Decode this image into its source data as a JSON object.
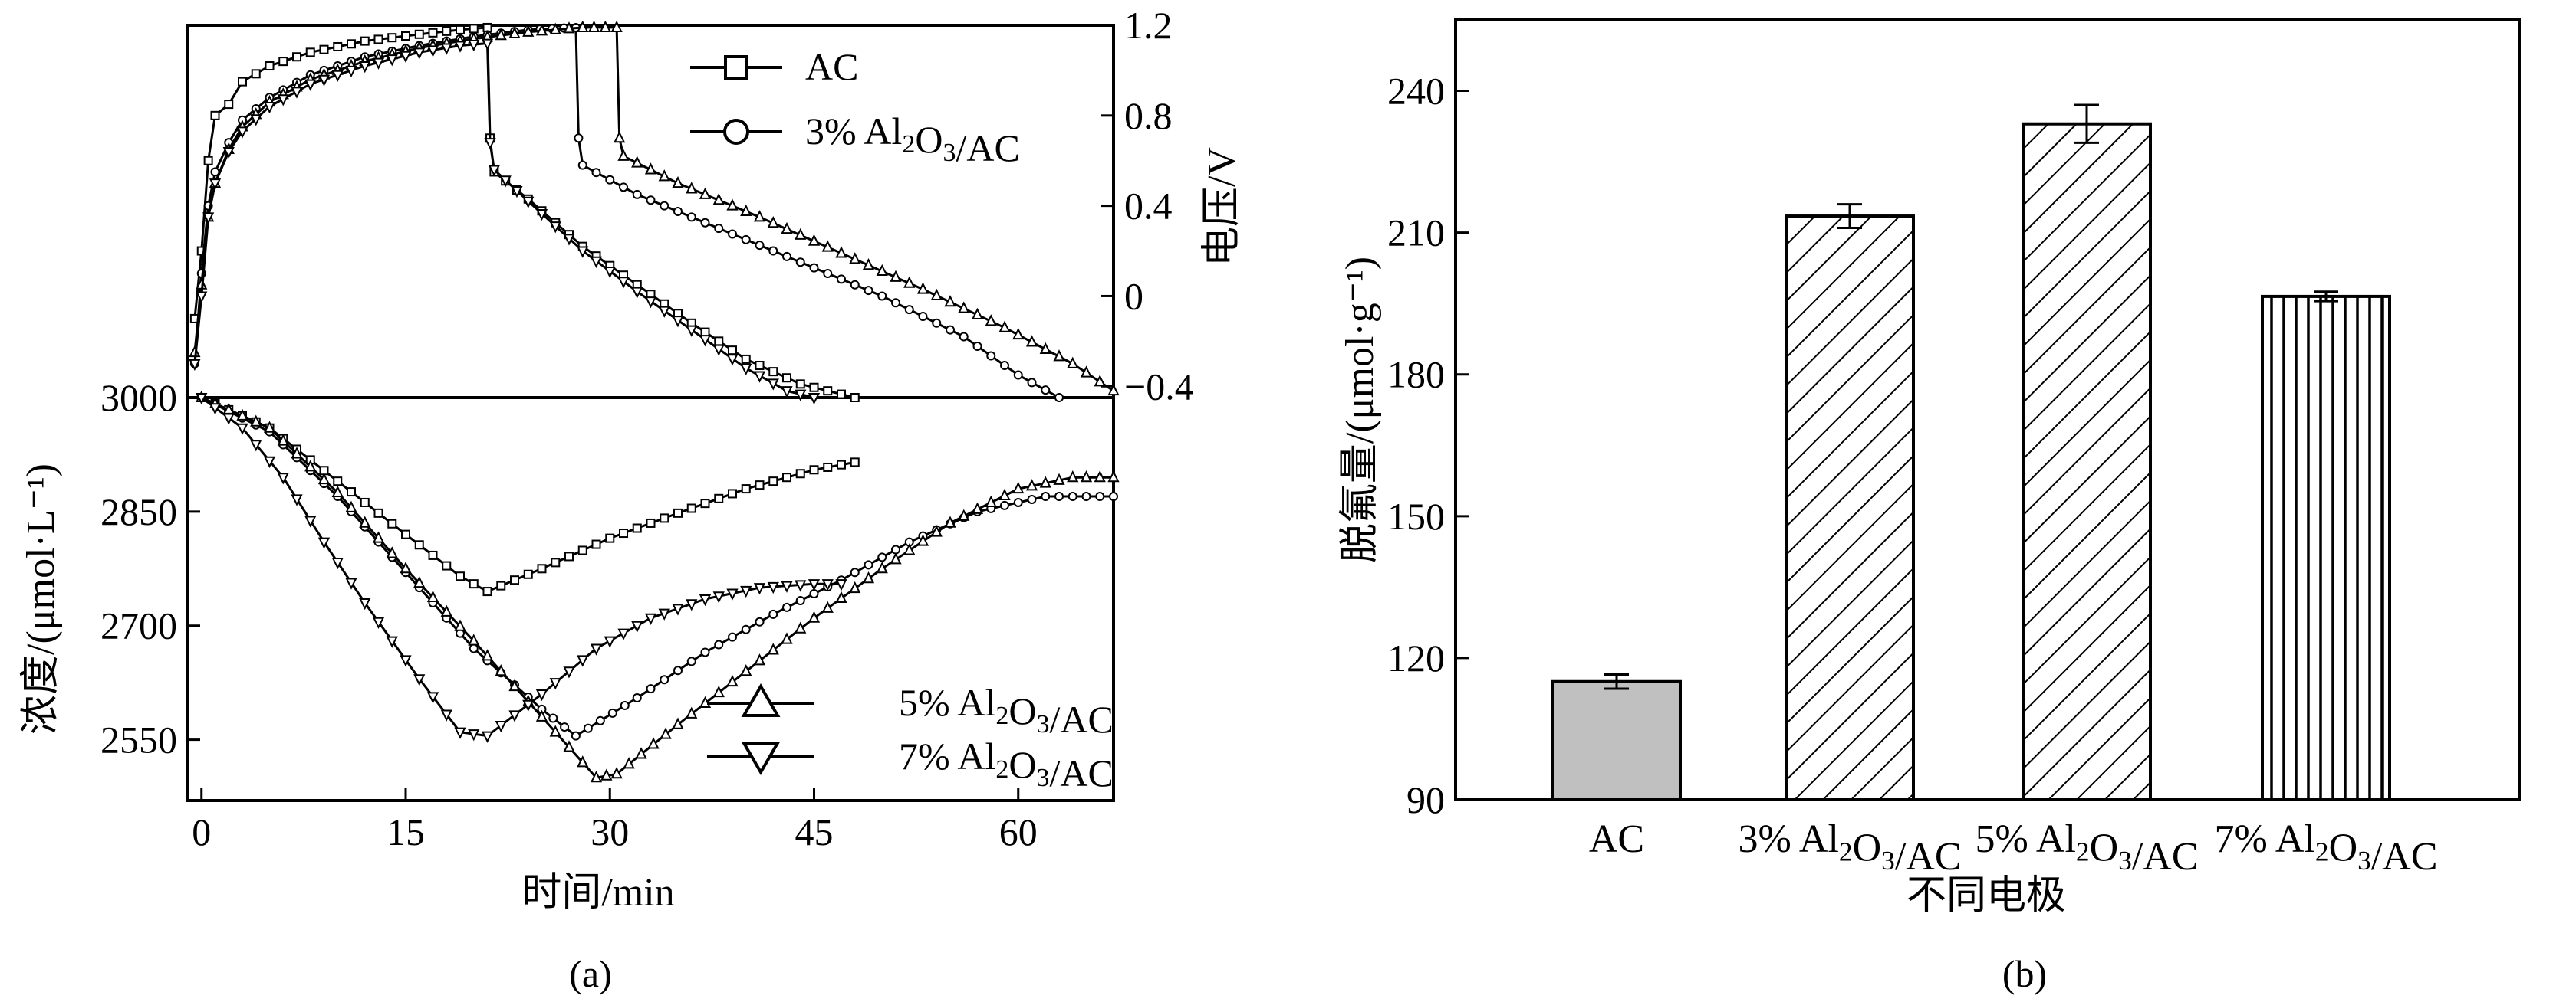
{
  "panel_a": {
    "label": "(a)",
    "xlabel": "时间/min",
    "ylabel_left": "浓度/(μmol·L⁻¹)",
    "ylabel_right": "电压/V",
    "legend_top": [
      "AC",
      "3% Al₂O₃/AC"
    ],
    "legend_bottom": [
      "5% Al₂O₃/AC",
      "7% Al₂O₃/AC"
    ]
  },
  "panel_b": {
    "label": "(b)",
    "xlabel": "不同电极",
    "ylabel": "脱氟量/(μmol·g⁻¹)"
  },
  "colors": {
    "line": "#000000",
    "ac_bar": "#c0c0c0",
    "background": "#ffffff"
  },
  "chart_data": [
    {
      "type": "line",
      "subplot": "voltage",
      "ylabel": "电压/V",
      "ylim": [
        -0.45,
        1.2
      ],
      "yticks": [
        -0.4,
        0,
        0.4,
        0.8,
        1.2
      ],
      "xlim": [
        -1,
        67
      ],
      "series": [
        {
          "name": "AC",
          "marker": "square",
          "points": [
            [
              -0.5,
              -0.1
            ],
            [
              0,
              0.2
            ],
            [
              0.5,
              0.6
            ],
            [
              1,
              0.8
            ],
            [
              2,
              0.85
            ],
            [
              3,
              0.95
            ],
            [
              5,
              1.02
            ],
            [
              8,
              1.08
            ],
            [
              12,
              1.13
            ],
            [
              16,
              1.16
            ],
            [
              19,
              1.18
            ],
            [
              21,
              1.19
            ],
            [
              21.2,
              0.7
            ],
            [
              21.5,
              0.55
            ],
            [
              24,
              0.43
            ],
            [
              28,
              0.22
            ],
            [
              32,
              0.05
            ],
            [
              36,
              -0.12
            ],
            [
              40,
              -0.28
            ],
            [
              44,
              -0.39
            ],
            [
              48,
              -0.45
            ]
          ]
        },
        {
          "name": "3% Al₂O₃/AC",
          "marker": "circle",
          "points": [
            [
              -0.5,
              -0.3
            ],
            [
              0,
              0.1
            ],
            [
              0.5,
              0.4
            ],
            [
              1,
              0.55
            ],
            [
              2,
              0.68
            ],
            [
              3,
              0.78
            ],
            [
              5,
              0.88
            ],
            [
              8,
              0.98
            ],
            [
              12,
              1.06
            ],
            [
              16,
              1.11
            ],
            [
              20,
              1.15
            ],
            [
              24,
              1.18
            ],
            [
              27.5,
              1.19
            ],
            [
              27.7,
              0.7
            ],
            [
              28,
              0.58
            ],
            [
              32,
              0.45
            ],
            [
              38,
              0.3
            ],
            [
              44,
              0.15
            ],
            [
              50,
              0.0
            ],
            [
              56,
              -0.18
            ],
            [
              60,
              -0.35
            ],
            [
              63,
              -0.45
            ]
          ]
        },
        {
          "name": "5% Al₂O₃/AC",
          "marker": "triangle-up",
          "points": [
            [
              -0.5,
              -0.25
            ],
            [
              0,
              0.05
            ],
            [
              0.5,
              0.35
            ],
            [
              1,
              0.5
            ],
            [
              2,
              0.65
            ],
            [
              3,
              0.75
            ],
            [
              5,
              0.86
            ],
            [
              8,
              0.96
            ],
            [
              12,
              1.04
            ],
            [
              16,
              1.1
            ],
            [
              20,
              1.14
            ],
            [
              24,
              1.17
            ],
            [
              28,
              1.19
            ],
            [
              30.5,
              1.19
            ],
            [
              30.7,
              0.7
            ],
            [
              31,
              0.62
            ],
            [
              35,
              0.5
            ],
            [
              41,
              0.35
            ],
            [
              47,
              0.19
            ],
            [
              53,
              0.03
            ],
            [
              59,
              -0.14
            ],
            [
              64,
              -0.3
            ],
            [
              67,
              -0.42
            ]
          ]
        },
        {
          "name": "7% Al₂O₃/AC",
          "marker": "triangle-down",
          "points": [
            [
              -0.5,
              -0.3
            ],
            [
              0,
              0.0
            ],
            [
              0.5,
              0.35
            ],
            [
              1,
              0.5
            ],
            [
              2,
              0.64
            ],
            [
              3,
              0.73
            ],
            [
              5,
              0.84
            ],
            [
              8,
              0.94
            ],
            [
              12,
              1.02
            ],
            [
              16,
              1.08
            ],
            [
              19,
              1.11
            ],
            [
              21,
              1.12
            ],
            [
              21.2,
              0.68
            ],
            [
              21.5,
              0.56
            ],
            [
              24,
              0.42
            ],
            [
              28,
              0.2
            ],
            [
              32,
              0.02
            ],
            [
              36,
              -0.15
            ],
            [
              40,
              -0.32
            ],
            [
              43,
              -0.42
            ],
            [
              45,
              -0.45
            ]
          ]
        }
      ]
    },
    {
      "type": "line",
      "subplot": "concentration",
      "xlabel": "时间/min",
      "ylabel": "浓度/(μmol·L⁻¹)",
      "xlim": [
        -1,
        67
      ],
      "ylim": [
        2470,
        3000
      ],
      "xticks": [
        0,
        15,
        30,
        45,
        60
      ],
      "yticks": [
        2550,
        2700,
        2850,
        3000
      ],
      "series": [
        {
          "name": "AC",
          "marker": "square",
          "points": [
            [
              0,
              3000
            ],
            [
              5,
              2960
            ],
            [
              10,
              2890
            ],
            [
              15,
              2820
            ],
            [
              19,
              2765
            ],
            [
              21,
              2745
            ],
            [
              25,
              2775
            ],
            [
              30,
              2815
            ],
            [
              35,
              2848
            ],
            [
              40,
              2880
            ],
            [
              45,
              2905
            ],
            [
              48,
              2915
            ]
          ]
        },
        {
          "name": "3% Al₂O₃/AC",
          "marker": "circle",
          "points": [
            [
              0,
              3000
            ],
            [
              5,
              2955
            ],
            [
              10,
              2870
            ],
            [
              15,
              2770
            ],
            [
              20,
              2670
            ],
            [
              25,
              2590
            ],
            [
              27.5,
              2555
            ],
            [
              32,
              2605
            ],
            [
              37,
              2665
            ],
            [
              42,
              2715
            ],
            [
              47,
              2760
            ],
            [
              52,
              2810
            ],
            [
              57,
              2850
            ],
            [
              62,
              2870
            ],
            [
              67,
              2870
            ]
          ]
        },
        {
          "name": "5% Al₂O₃/AC",
          "marker": "triangle-up",
          "points": [
            [
              0,
              3000
            ],
            [
              5,
              2960
            ],
            [
              10,
              2875
            ],
            [
              15,
              2775
            ],
            [
              20,
              2680
            ],
            [
              25,
              2580
            ],
            [
              29,
              2500
            ],
            [
              30.5,
              2505
            ],
            [
              35,
              2570
            ],
            [
              40,
              2640
            ],
            [
              45,
              2710
            ],
            [
              50,
              2775
            ],
            [
              55,
              2835
            ],
            [
              60,
              2880
            ],
            [
              64,
              2895
            ],
            [
              67,
              2895
            ]
          ]
        },
        {
          "name": "7% Al₂O₃/AC",
          "marker": "triangle-down",
          "points": [
            [
              0,
              3000
            ],
            [
              3,
              2960
            ],
            [
              6,
              2895
            ],
            [
              9,
              2810
            ],
            [
              12,
              2730
            ],
            [
              16,
              2630
            ],
            [
              19,
              2560
            ],
            [
              21,
              2555
            ],
            [
              25,
              2610
            ],
            [
              29,
              2670
            ],
            [
              33,
              2710
            ],
            [
              37,
              2735
            ],
            [
              41,
              2750
            ],
            [
              45,
              2755
            ],
            [
              47,
              2755
            ]
          ]
        }
      ]
    },
    {
      "type": "bar",
      "subplot": "b",
      "title": "",
      "xlabel": "不同电极",
      "ylabel": "脱氟量/(μmol·g⁻¹)",
      "categories": [
        "AC",
        "3% Al₂O₃/AC",
        "5% Al₂O₃/AC",
        "7% Al₂O₃/AC"
      ],
      "values": [
        115,
        213.5,
        233,
        196.5
      ],
      "errors": [
        1.5,
        2.5,
        4,
        1
      ],
      "fills": [
        "solid",
        "hatch-diagonal",
        "hatch-diagonal",
        "hatch-vertical"
      ],
      "ylim": [
        90,
        255
      ],
      "yticks": [
        90,
        120,
        150,
        180,
        210,
        240
      ]
    }
  ]
}
